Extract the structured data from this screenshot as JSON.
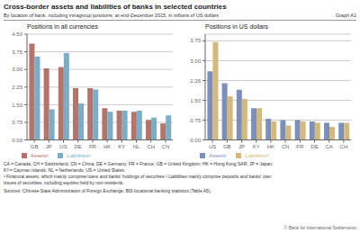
{
  "title": "Cross-border assets and liabilities of banks in selected countries",
  "subtitle": "By location of bank, including intragroup positions; at end-December 2015, in trillions of US dollars",
  "annotations": [
    "Graph A1",
    "CA = Canada; CH = Switzerland; CN = China; DE = Germany; FR = France; GB = United Kingdom; HK = Hong Kong SAR; JP = Japan;",
    "KY= Cayman Islands; NL = Netherlands; US = United States.",
    "¹ Financial assets, which mainly comprise loans and banks’ holdings of securities   ² Liabilities mainly comprise deposits and banks’ own",
    "issues of securities, including equities held by non-residents.",
    "Sources: Chinese State Administration of Foreign Exchange; BIS locational banking statistics (Table A5).",
    "© Bank for International Settlements"
  ],
  "chart_data": [
    {
      "type": "bar",
      "title": "Positions in all currencies",
      "categories": [
        "GB",
        "JP",
        "US",
        "DE",
        "FR",
        "HK",
        "KY",
        "NL",
        "CH",
        "CN"
      ],
      "series": [
        {
          "name": "Assets¹",
          "color": "#b5736a",
          "values": [
            4.1,
            3.05,
            3.1,
            2.2,
            2.2,
            1.35,
            1.25,
            1.2,
            0.85,
            0.7
          ]
        },
        {
          "name": "Liabilities²",
          "color": "#7aaec8",
          "values": [
            3.55,
            1.3,
            3.7,
            1.55,
            2.15,
            1.2,
            1.25,
            1.25,
            0.95,
            1.05
          ]
        }
      ],
      "ylim": [
        0,
        4.5
      ],
      "yticks": [
        {
          "value": 0,
          "label": "0.00"
        },
        0.75,
        {
          "value": 1.5,
          "label": "1.50"
        },
        2.25,
        {
          "value": 3,
          "label": "3.00"
        },
        3.75,
        {
          "value": 4.5,
          "label": "4.50"
        }
      ],
      "grid": true,
      "legend": "lower left"
    },
    {
      "type": "bar",
      "title": "Positions in US dollars",
      "categories": [
        "US",
        "GB",
        "JP",
        "KY",
        "HK",
        "CN",
        "FR",
        "DE",
        "CA",
        "CH"
      ],
      "series": [
        {
          "name": "Assets¹",
          "color": "#7b8fba",
          "values": [
            2.6,
            2.15,
            1.9,
            1.2,
            0.8,
            0.75,
            0.75,
            0.7,
            0.65,
            0.65
          ]
        },
        {
          "name": "Liabilities²",
          "color": "#d4b97c",
          "values": [
            3.7,
            1.65,
            1.55,
            1.2,
            0.7,
            0.55,
            0.7,
            0.65,
            0.5,
            0.65
          ]
        }
      ],
      "ylim": [
        0,
        4.0
      ],
      "yticks": [
        {
          "value": 0,
          "label": "0.00"
        },
        0.75,
        {
          "value": 1.5,
          "label": "1.50"
        },
        2.25,
        {
          "value": 3,
          "label": "3.00"
        },
        3.75
      ],
      "grid": true,
      "legend": "lower left"
    }
  ]
}
